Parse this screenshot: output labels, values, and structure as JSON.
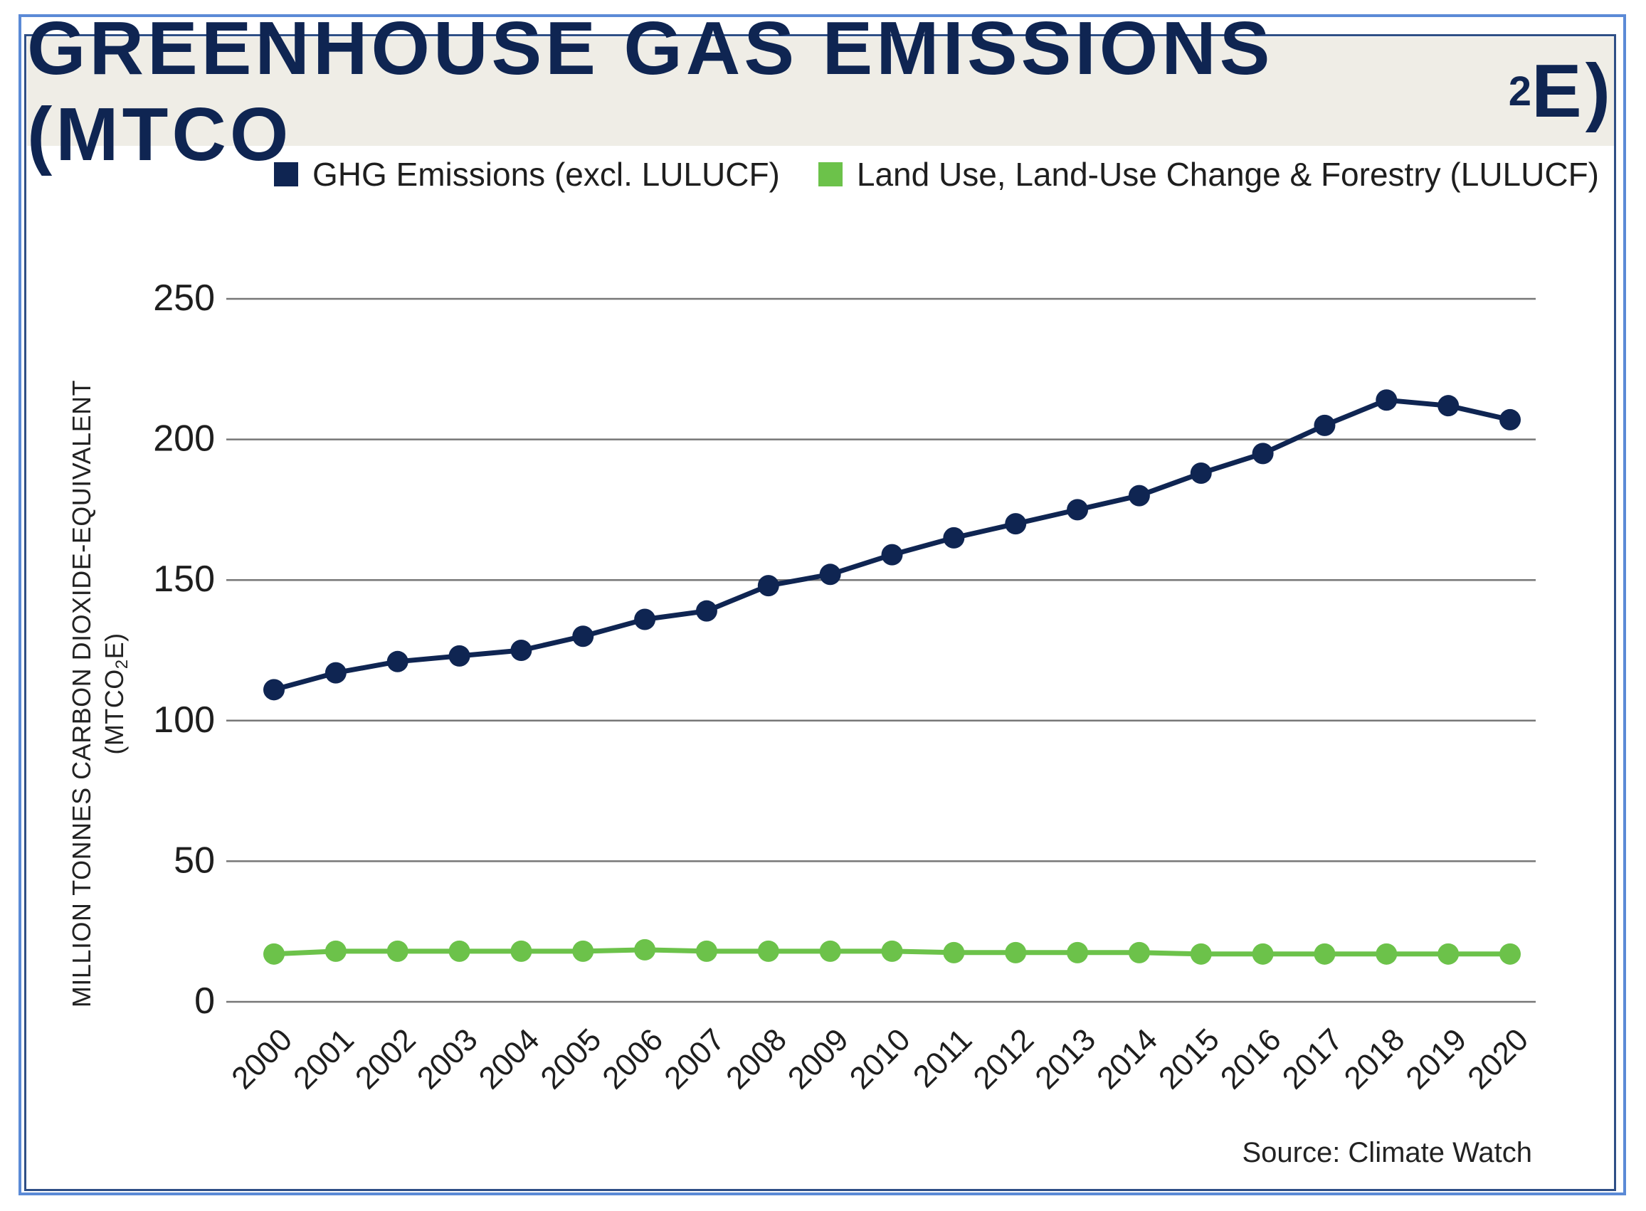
{
  "title": {
    "main": "GREENHOUSE GAS EMISSIONS (MTCO",
    "sub": "2",
    "end": "E)"
  },
  "legend": [
    {
      "label": "GHG Emissions (excl. LULUCF)",
      "color": "#0f2552"
    },
    {
      "label": "Land Use, Land-Use Change & Forestry (LULUCF)",
      "color": "#6cc24a"
    }
  ],
  "y_axis_label": {
    "line1": "MILLION TONNES CARBON DIOXIDE-EQUIVALENT",
    "line2_pre": "(MTCO",
    "line2_sub": "2",
    "line2_post": "E)"
  },
  "source": "Source: Climate Watch",
  "chart_data": {
    "type": "line",
    "title": "GREENHOUSE GAS EMISSIONS (MTCO2E)",
    "xlabel": "",
    "ylabel": "MILLION TONNES CARBON DIOXIDE-EQUIVALENT (MTCO2E)",
    "ylim": [
      0,
      250
    ],
    "yticks": [
      0,
      50,
      100,
      150,
      200,
      250
    ],
    "grid": true,
    "categories": [
      "2000",
      "2001",
      "2002",
      "2003",
      "2004",
      "2005",
      "2006",
      "2007",
      "2008",
      "2009",
      "2010",
      "2011",
      "2012",
      "2013",
      "2014",
      "2015",
      "2016",
      "2017",
      "2018",
      "2019",
      "2020"
    ],
    "series": [
      {
        "name": "GHG Emissions (excl. LULUCF)",
        "color": "#0f2552",
        "values": [
          111,
          117,
          121,
          123,
          125,
          130,
          136,
          139,
          148,
          152,
          159,
          165,
          170,
          175,
          180,
          188,
          195,
          205,
          214,
          212,
          207
        ]
      },
      {
        "name": "Land Use, Land-Use Change & Forestry (LULUCF)",
        "color": "#6cc24a",
        "values": [
          17,
          18,
          18,
          18,
          18,
          18,
          18.5,
          18,
          18,
          18,
          18,
          17.5,
          17.5,
          17.5,
          17.5,
          17,
          17,
          17,
          17,
          17,
          17
        ]
      }
    ]
  }
}
